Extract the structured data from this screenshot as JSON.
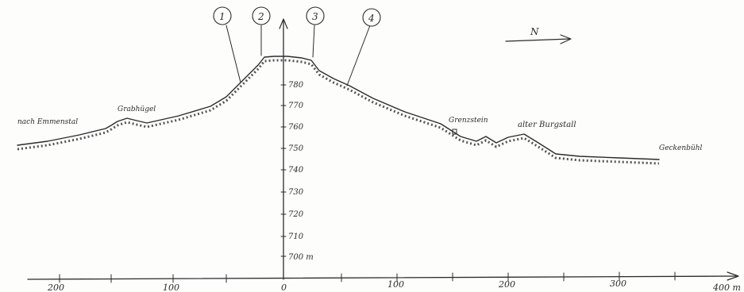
{
  "markers": [
    {
      "label": "1"
    },
    {
      "label": "2"
    },
    {
      "label": "3"
    },
    {
      "label": "4"
    }
  ],
  "north_label": "N",
  "places": {
    "left_valley": "nach Emmenstal",
    "grabhuegel": "Grabhügel",
    "grenzstein": "Grenzstein",
    "burgstall": "alter Burgstall",
    "right_end": "Geckenbühl"
  },
  "elevation_ticks": [
    "780",
    "770",
    "760",
    "750",
    "740",
    "730",
    "720",
    "710",
    "700 m"
  ],
  "distance_ticks": [
    "200",
    "100",
    "0",
    "100",
    "200",
    "300",
    "400 m"
  ]
}
